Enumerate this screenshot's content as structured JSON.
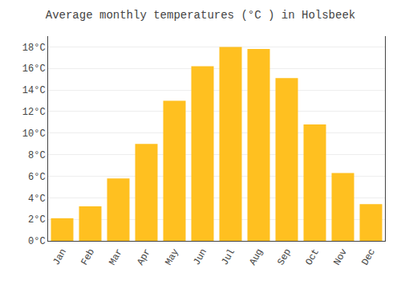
{
  "chart_data": {
    "type": "bar",
    "title": "Average monthly temperatures (°C ) in Holsbeek",
    "categories": [
      "Jan",
      "Feb",
      "Mar",
      "Apr",
      "May",
      "Jun",
      "Jul",
      "Aug",
      "Sep",
      "Oct",
      "Nov",
      "Dec"
    ],
    "values": [
      2.1,
      3.2,
      5.8,
      9.0,
      13.0,
      16.2,
      18.0,
      17.8,
      15.1,
      10.8,
      6.3,
      3.4
    ],
    "color": "#FFC020",
    "ylim": [
      0,
      19
    ],
    "yticks": [
      {
        "value": 0,
        "label": "0°C"
      },
      {
        "value": 2,
        "label": "2°C"
      },
      {
        "value": 4,
        "label": "4°C"
      },
      {
        "value": 6,
        "label": "6°C"
      },
      {
        "value": 8,
        "label": "8°C"
      },
      {
        "value": 10,
        "label": "10°C"
      },
      {
        "value": 12,
        "label": "12°C"
      },
      {
        "value": 14,
        "label": "14°C"
      },
      {
        "value": 16,
        "label": "16°C"
      },
      {
        "value": 18,
        "label": "18°C"
      }
    ],
    "grid": true
  }
}
